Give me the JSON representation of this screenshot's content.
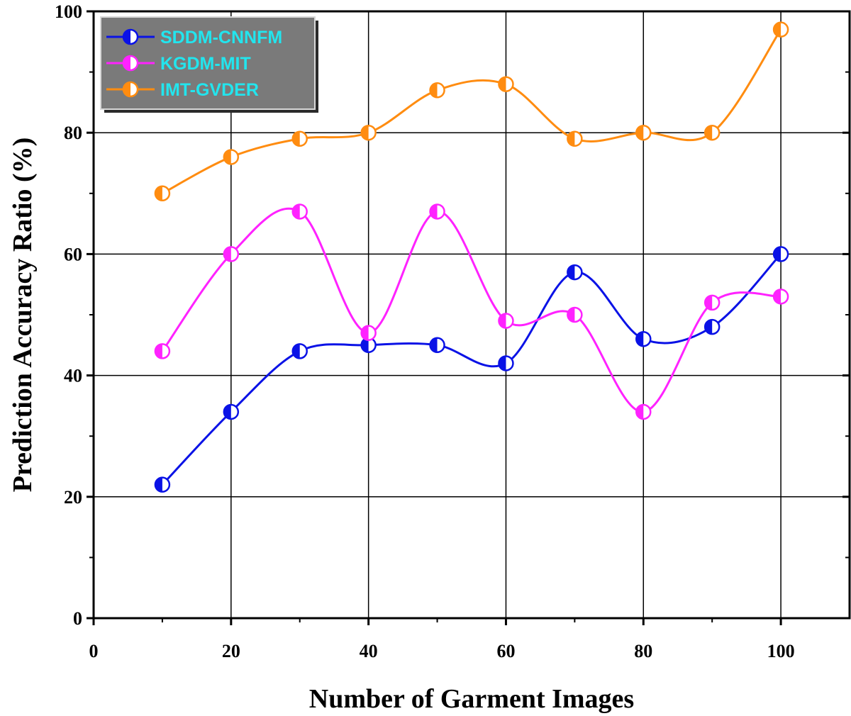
{
  "chart_data": {
    "type": "line",
    "title": "",
    "xlabel": "Number of Garment Images",
    "ylabel": "Prediction Accuracy Ratio (%)",
    "xlim": [
      0,
      110
    ],
    "ylim": [
      0,
      100
    ],
    "xticks": [
      0,
      20,
      40,
      60,
      80,
      100
    ],
    "yticks": [
      0,
      20,
      40,
      60,
      80,
      100
    ],
    "grid": true,
    "legend_position": "top-left",
    "x": [
      10,
      20,
      30,
      40,
      50,
      60,
      70,
      80,
      90,
      100
    ],
    "series": [
      {
        "name": "SDDM-CNNFM",
        "color": "#0a12e6",
        "values": [
          22,
          34,
          44,
          45,
          45,
          42,
          57,
          46,
          48,
          60
        ]
      },
      {
        "name": "KGDM-MIT",
        "color": "#ff22ff",
        "values": [
          44,
          60,
          67,
          47,
          67,
          49,
          50,
          34,
          52,
          53
        ]
      },
      {
        "name": "IMT-GVDER",
        "color": "#ff8c10",
        "values": [
          70,
          76,
          79,
          80,
          87,
          88,
          79,
          80,
          80,
          97
        ]
      }
    ]
  }
}
